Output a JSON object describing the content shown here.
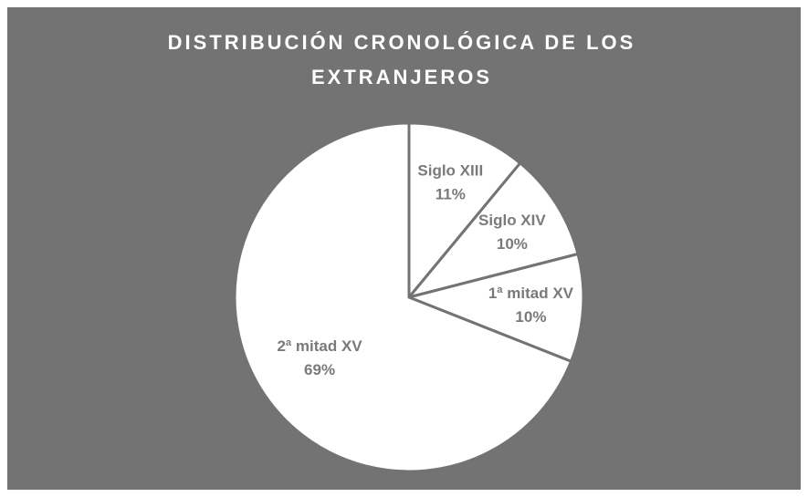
{
  "chart_data": {
    "type": "pie",
    "title": "DISTRIBUCIÓN CRONOLÓGICA DE LOS EXTRANJEROS",
    "categories": [
      "Siglo XIII",
      "Siglo XIV",
      "1ª mitad XV",
      "2ª mitad XV"
    ],
    "values": [
      11,
      10,
      10,
      69
    ],
    "value_labels": [
      "11%",
      "10%",
      "10%",
      "69%"
    ],
    "color": "#ffffff"
  }
}
